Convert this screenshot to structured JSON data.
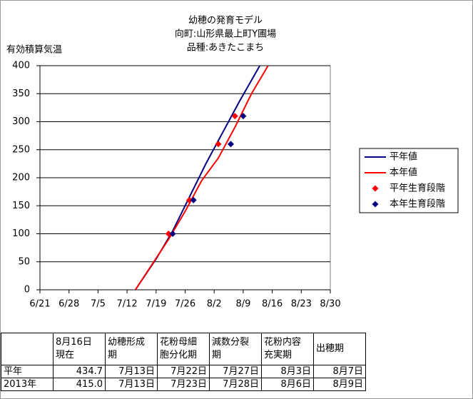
{
  "chart_data": {
    "type": "line",
    "title": [
      "幼穂の発育モデル",
      "向町:山形県最上町Y圃場",
      "品種:あきたこまち"
    ],
    "y_label": "有効積算気温",
    "xlim": [
      "6/21",
      "8/30"
    ],
    "xticks": [
      "6/21",
      "6/28",
      "7/5",
      "7/12",
      "7/19",
      "7/26",
      "8/2",
      "8/9",
      "8/16",
      "8/23",
      "8/30"
    ],
    "ylim": [
      0,
      400
    ],
    "yticks": [
      0,
      50,
      100,
      150,
      200,
      250,
      300,
      350,
      400
    ],
    "grid": true,
    "legend": "right",
    "series": [
      {
        "name": "平年値",
        "color": "#000080",
        "marker": "line",
        "x": [
          "7/14",
          "7/19",
          "7/23",
          "7/27",
          "7/31",
          "8/4",
          "8/8",
          "8/13"
        ],
        "values": [
          0,
          55,
          105,
          165,
          225,
          280,
          335,
          400
        ]
      },
      {
        "name": "本年値",
        "color": "#ff0000",
        "marker": "line",
        "x": [
          "7/14",
          "7/18",
          "7/22",
          "7/26",
          "7/30",
          "8/3",
          "8/7",
          "8/11",
          "8/15"
        ],
        "values": [
          0,
          45,
          90,
          140,
          195,
          235,
          290,
          350,
          400
        ]
      },
      {
        "name": "平年生育段階",
        "color": "#ff0000",
        "marker": "diamond",
        "x": [
          "7/22",
          "7/27",
          "8/3",
          "8/7"
        ],
        "values": [
          100,
          160,
          260,
          310
        ]
      },
      {
        "name": "本年生育段階",
        "color": "#000080",
        "marker": "diamond",
        "x": [
          "7/23",
          "7/28",
          "8/6",
          "8/9"
        ],
        "values": [
          100,
          160,
          260,
          310
        ]
      }
    ]
  },
  "table": {
    "header": [
      [
        "8月16日",
        "現在"
      ],
      [
        "幼穂形成",
        "期"
      ],
      [
        "花粉母細",
        "胞分化期"
      ],
      [
        "減数分裂",
        "期"
      ],
      [
        "花粉内容",
        "充実期"
      ],
      [
        "出穂期"
      ]
    ],
    "rows": [
      [
        "平年",
        "434.7",
        "7月13日",
        "7月22日",
        "7月27日",
        "8月3日",
        "8月7日"
      ],
      [
        "2013年",
        "415.0",
        "7月13日",
        "7月23日",
        "7月28日",
        "8月6日",
        "8月9日"
      ]
    ]
  }
}
